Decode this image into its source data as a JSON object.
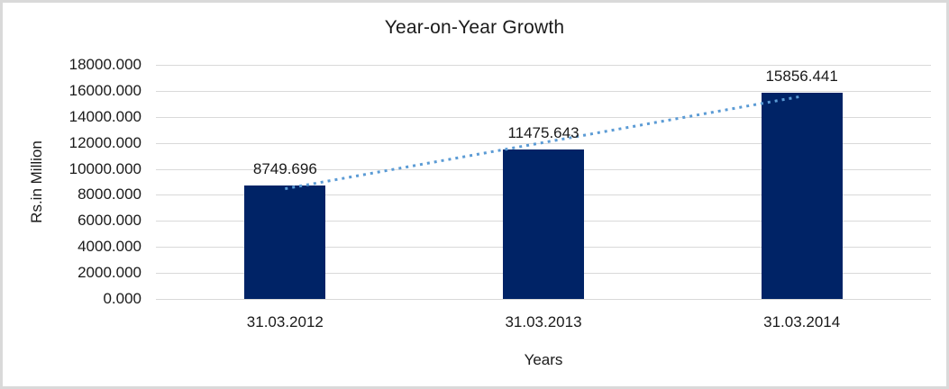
{
  "chart_data": {
    "type": "bar",
    "title": "Year-on-Year Growth",
    "xlabel": "Years",
    "ylabel": "Rs.in Million",
    "categories": [
      "31.03.2012",
      "31.03.2013",
      "31.03.2014"
    ],
    "values": [
      8749.696,
      11475.643,
      15856.441
    ],
    "data_labels": [
      "8749.696",
      "11475.643",
      "15856.441"
    ],
    "ylim": [
      0,
      18000
    ],
    "ytick_step": 2000,
    "ytick_labels": [
      "0.000",
      "2000.000",
      "4000.000",
      "6000.000",
      "8000.000",
      "10000.000",
      "12000.000",
      "14000.000",
      "16000.000",
      "18000.000"
    ],
    "grid": true,
    "legend": "none",
    "trendline": {
      "type": "linear",
      "style": "dotted",
      "color": "#5b9bd5"
    },
    "colors": {
      "bar": "#002366",
      "gridline": "#d9d9d9",
      "frame_border": "#d9d9d9",
      "background": "#ffffff",
      "text": "#1a1a1a"
    }
  }
}
